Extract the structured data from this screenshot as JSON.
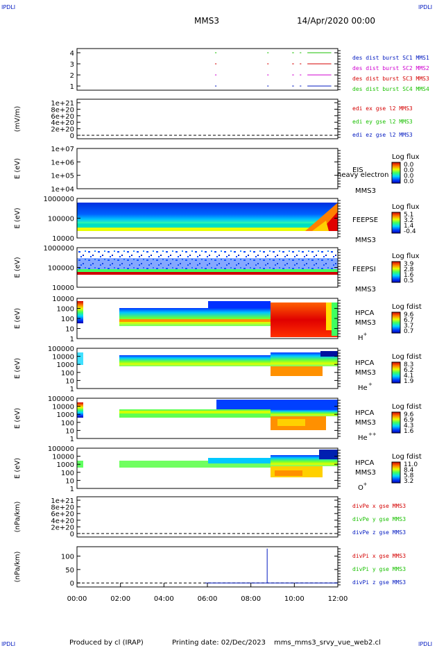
{
  "header": {
    "spacecraft": "MMS3",
    "datetime": "14/Apr/2020 00:00",
    "corner_tl": "IPDLI",
    "corner_tr": "IPDLI",
    "corner_bl": "IPDLI",
    "corner_br": "IPDLI"
  },
  "footer": {
    "produced_by": "Produced by cl (IRAP)",
    "printing_date": "Printing date: 02/Dec/2023",
    "script": "mms_mms3_srvy_vue_web2.cl"
  },
  "colors": {
    "red": "#d40000",
    "green": "#19c000",
    "blue": "#0018c0",
    "magenta": "#d000d0"
  },
  "chart_data": {
    "type": "multi-panel time series",
    "x_ticks": [
      "00:00",
      "02:00",
      "04:00",
      "06:00",
      "08:00",
      "10:00",
      "12:00"
    ],
    "xlim_hours": [
      0,
      12
    ],
    "panels": [
      {
        "id": "burst",
        "type": "timeline",
        "yticks": [
          "4",
          "3",
          "2",
          "1"
        ],
        "legend": [
          {
            "text": "des dist burst SC1 MMS1",
            "color": "#0018c0"
          },
          {
            "text": "des dist burst SC2 MMS2",
            "color": "#d000d0"
          },
          {
            "text": "des dist burst SC3 MMS3",
            "color": "#d40000"
          },
          {
            "text": "des dist burst SC4 MMS4",
            "color": "#19c000"
          }
        ],
        "intervals": [
          [
            6.35,
            6.42
          ],
          [
            8.75,
            8.82
          ],
          [
            9.9,
            9.98
          ],
          [
            10.25,
            10.32
          ],
          [
            10.6,
            11.7
          ]
        ]
      },
      {
        "id": "edi",
        "type": "line",
        "ylabel": "(mV/m)",
        "yticks": [
          "1e+21",
          "8e+20",
          "6e+20",
          "4e+20",
          "2e+20",
          "0"
        ],
        "legend": [
          {
            "text": "edi ex gse l2 MMS3",
            "color": "#d40000"
          },
          {
            "text": "edi ey gse l2 MMS3",
            "color": "#19c000"
          },
          {
            "text": "edi ez gse l2 MMS3",
            "color": "#0018c0"
          }
        ]
      },
      {
        "id": "eis",
        "type": "spectrogram",
        "ylabel": "E (eV)",
        "yticks": [
          "1e+07",
          "1e+06",
          "1e+05",
          "1e+04"
        ],
        "instrument": "EIS",
        "note": "heavy electron to",
        "sc": "MMS3",
        "cbar_title": "Log flux",
        "cbar_ticks": [
          "0.0",
          "0.0",
          "0.0",
          "0.0"
        ]
      },
      {
        "id": "feepse",
        "type": "spectrogram",
        "ylabel": "E (eV)",
        "yticks": [
          "1000000",
          "100000",
          "10000"
        ],
        "instrument": "FEEPSE",
        "sc": "MMS3",
        "cbar_title": "Log flux",
        "cbar_ticks": [
          "5.1",
          "3.2",
          "1.4",
          "-0.4"
        ]
      },
      {
        "id": "feepsi",
        "type": "spectrogram",
        "ylabel": "E (eV)",
        "yticks": [
          "1000000",
          "100000",
          "10000"
        ],
        "instrument": "FEEPSI",
        "sc": "MMS3",
        "cbar_title": "Log flux",
        "cbar_ticks": [
          "3.9",
          "2.8",
          "1.6",
          "0.5"
        ]
      },
      {
        "id": "hpca_h",
        "type": "spectrogram",
        "ylabel": "E (eV)",
        "yticks": [
          "10000",
          "1000",
          "100",
          "10",
          "1"
        ],
        "instrument": "HPCA",
        "sc": "MMS3",
        "species": "H",
        "species_sup": "+",
        "cbar_title": "Log fdist",
        "cbar_ticks": [
          "9.6",
          "6.7",
          "3.7",
          "0.7"
        ]
      },
      {
        "id": "hpca_he",
        "type": "spectrogram",
        "ylabel": "E (eV)",
        "yticks": [
          "100000",
          "10000",
          "1000",
          "100",
          "10",
          "1"
        ],
        "instrument": "HPCA",
        "sc": "MMS3",
        "species": "He",
        "species_sup": "+",
        "cbar_title": "Log fdist",
        "cbar_ticks": [
          "8.3",
          "6.2",
          "4.1",
          "1.9"
        ]
      },
      {
        "id": "hpca_he2",
        "type": "spectrogram",
        "ylabel": "E (eV)",
        "yticks": [
          "100000",
          "10000",
          "1000",
          "100",
          "10",
          "1"
        ],
        "instrument": "HPCA",
        "sc": "MMS3",
        "species": "He",
        "species_sup": "++",
        "cbar_title": "Log fdist",
        "cbar_ticks": [
          "9.6",
          "6.9",
          "4.3",
          "1.6"
        ]
      },
      {
        "id": "hpca_o",
        "type": "spectrogram",
        "ylabel": "E (eV)",
        "yticks": [
          "100000",
          "10000",
          "1000",
          "100",
          "10",
          "1"
        ],
        "instrument": "HPCA",
        "sc": "MMS3",
        "species": "O",
        "species_sup": "+",
        "cbar_title": "Log fdist",
        "cbar_ticks": [
          "11.0",
          "8.4",
          "5.8",
          "3.2"
        ]
      },
      {
        "id": "divpe",
        "type": "line",
        "ylabel": "(nPa/km)",
        "yticks": [
          "1e+21",
          "8e+20",
          "6e+20",
          "4e+20",
          "2e+20",
          "0"
        ],
        "legend": [
          {
            "text": "divPe x gse MMS3",
            "color": "#d40000"
          },
          {
            "text": "divPe y gse MMS3",
            "color": "#19c000"
          },
          {
            "text": "divPe z gse MMS3",
            "color": "#0018c0"
          }
        ]
      },
      {
        "id": "divpi",
        "type": "line",
        "ylabel": "(nPa/km)",
        "yticks": [
          "100",
          "50",
          "0"
        ],
        "ylim": [
          -15,
          135
        ],
        "legend": [
          {
            "text": "divPi x gse MMS3",
            "color": "#d40000"
          },
          {
            "text": "divPi y gse MMS3",
            "color": "#19c000"
          },
          {
            "text": "divPi z gse MMS3",
            "color": "#0018c0"
          }
        ],
        "series_z": {
          "start_hour": 5.9,
          "end_hour": 12,
          "baseline": 0,
          "spike_hour": 8.75,
          "spike_value": 128
        }
      }
    ]
  }
}
